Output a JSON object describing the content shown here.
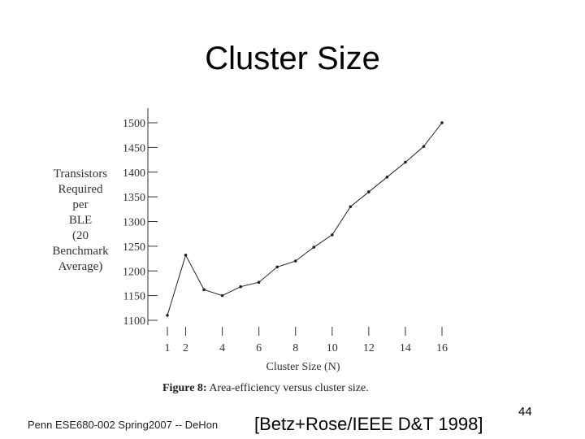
{
  "slide": {
    "title": "Cluster Size",
    "footer_left": "Penn ESE680-002 Spring2007 -- DeHon",
    "citation": "[Betz+Rose/IEEE D&T 1998]",
    "page_number": "44"
  },
  "chart_data": {
    "type": "line",
    "title": "",
    "caption_label": "Figure 8:",
    "caption_text": "Area-efficiency versus cluster size.",
    "xlabel": "Cluster Size (N)",
    "ylabel_lines": [
      "Transistors",
      "Required",
      "per",
      "BLE",
      "(20",
      "Benchmark",
      "Average)"
    ],
    "x_ticks": [
      1,
      2,
      4,
      6,
      8,
      10,
      12,
      14,
      16
    ],
    "y_ticks": [
      1100,
      1150,
      1200,
      1250,
      1300,
      1350,
      1400,
      1450,
      1500
    ],
    "xlim": [
      1,
      16
    ],
    "ylim": [
      1085,
      1515
    ],
    "grid": false,
    "series": [
      {
        "x": [
          1,
          2,
          3,
          4,
          5,
          6,
          7,
          8,
          9,
          10,
          11,
          12,
          13,
          14,
          15,
          16
        ],
        "y": [
          1110,
          1232,
          1162,
          1150,
          1168,
          1177,
          1208,
          1220,
          1248,
          1273,
          1330,
          1360,
          1390,
          1420,
          1452,
          1500
        ]
      }
    ],
    "color": "#222222"
  }
}
